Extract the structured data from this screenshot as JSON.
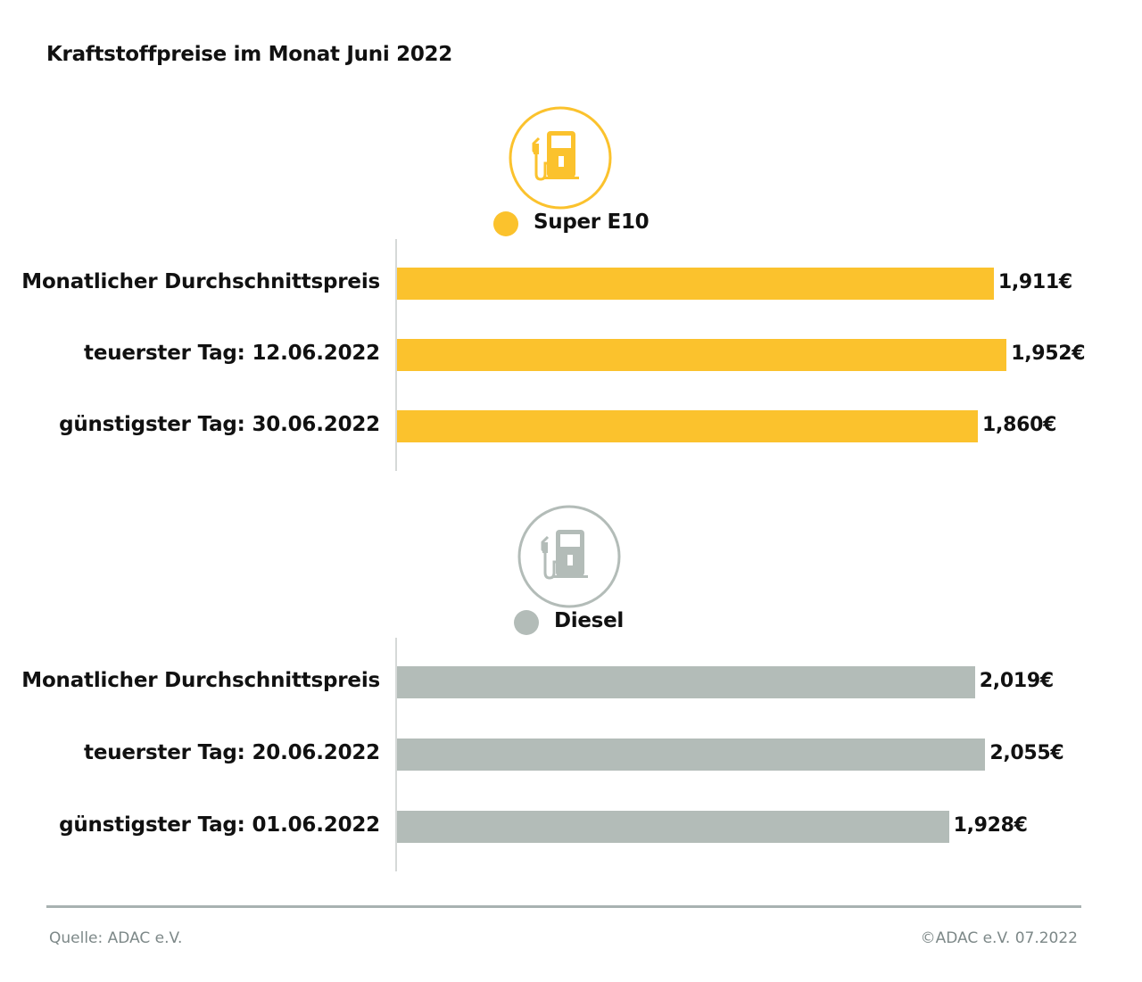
{
  "title": "Kraftstoffpreise im Monat Juni 2022",
  "chart_data": [
    {
      "type": "bar",
      "orientation": "horizontal",
      "series": [
        {
          "name": "Super E10",
          "values": [
            1.911,
            1.952,
            1.86
          ]
        }
      ],
      "categories": [
        "Monatlicher Durchschnittspreis",
        "teuerster Tag: 12.06.2022",
        "günstigster Tag: 30.06.2022"
      ],
      "value_labels": [
        "1,911€",
        "1,952€",
        "1,860€"
      ],
      "color": "#FBC22D",
      "icon": "fuel-pump-icon",
      "xlim": [
        0,
        2.2
      ],
      "grid": false,
      "legend": "top-center"
    },
    {
      "type": "bar",
      "orientation": "horizontal",
      "series": [
        {
          "name": "Diesel",
          "values": [
            2.019,
            2.055,
            1.928
          ]
        }
      ],
      "categories": [
        "Monatlicher Durchschnittspreis",
        "teuerster Tag: 20.06.2022",
        "günstigster Tag: 01.06.2022"
      ],
      "value_labels": [
        "2,019€",
        "2,055€",
        "1,928€"
      ],
      "color": "#B3BCB8",
      "icon": "fuel-pump-icon",
      "xlim": [
        0,
        2.4
      ],
      "grid": false,
      "legend": "top-center"
    }
  ],
  "footer": {
    "source": "Quelle: ADAC e.V.",
    "copyright": "©ADAC e.V. 07.2022"
  }
}
